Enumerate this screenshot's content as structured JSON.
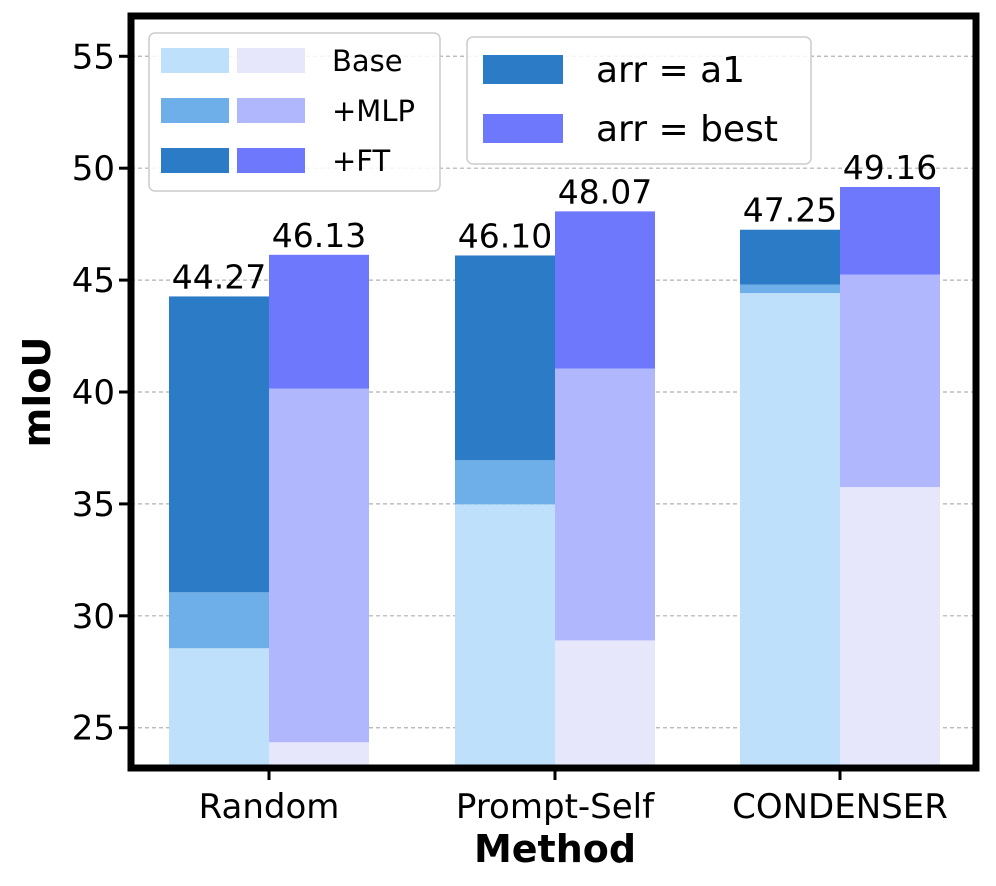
{
  "chart_data": {
    "type": "bar",
    "stacked": true,
    "grouped": true,
    "xlabel": "Method",
    "ylabel": "mIoU",
    "ylim": [
      23.2,
      56.8
    ],
    "yticks": [
      25,
      30,
      35,
      40,
      45,
      50,
      55
    ],
    "grid": "y-dashed",
    "categories": [
      "Random",
      "Prompt-Self",
      "CONDENSER"
    ],
    "groups": [
      {
        "name": "arr = a1",
        "colors": {
          "Base": "#bfe0fb",
          "+MLP": "#6fafe9",
          "+FT": "#2c7bc6"
        },
        "stack": {
          "Base": [
            28.55,
            34.98,
            44.42
          ],
          "+MLP": [
            31.05,
            36.95,
            44.8
          ],
          "+FT": [
            44.27,
            46.1,
            47.25
          ]
        },
        "labels": [
          "44.27",
          "46.10",
          "47.25"
        ]
      },
      {
        "name": "arr = best",
        "colors": {
          "Base": "#e7e7fb",
          "+MLP": "#b1b7fd",
          "+FT": "#6d78fd"
        },
        "stack": {
          "Base": [
            24.35,
            28.9,
            35.75
          ],
          "+MLP": [
            40.15,
            41.05,
            45.25
          ],
          "+FT": [
            46.13,
            48.07,
            49.16
          ]
        },
        "labels": [
          "46.13",
          "48.07",
          "49.16"
        ]
      }
    ],
    "legend_stages": {
      "placement": "top-left",
      "entries": [
        "Base",
        "+MLP",
        "+FT"
      ]
    },
    "legend_arr": {
      "placement": "top-center",
      "entries": [
        "arr = a1",
        "arr = best"
      ]
    }
  }
}
